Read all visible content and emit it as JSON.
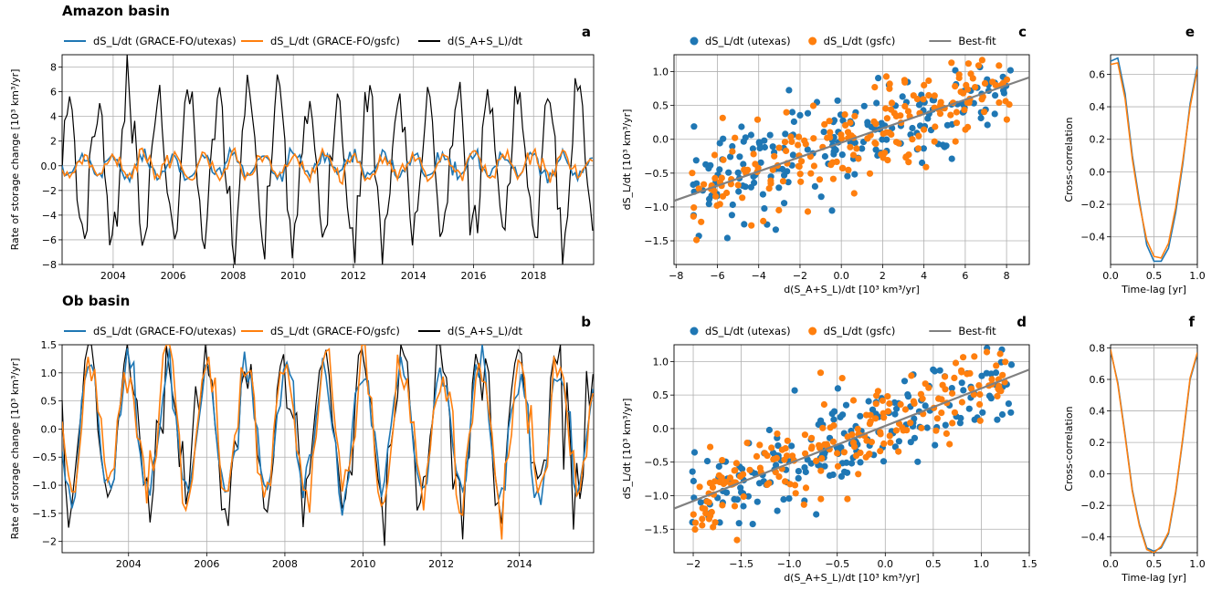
{
  "titles": {
    "top": "Amazon basin",
    "bottom": "Ob basin"
  },
  "legend_ts": [
    "dS_L/dt (GRACE-FO/utexas)",
    "dS_L/dt (GRACE-FO/gsfc)",
    "d(S_A+S_L)/dt"
  ],
  "legend_sc": [
    "dS_L/dt (utexas)",
    "dS_L/dt (gsfc)",
    "Best-fit"
  ],
  "colors": {
    "utexas": "#1f77b4",
    "gsfc": "#ff7f0e",
    "total": "#000000",
    "fit": "#808080"
  },
  "chart_data": [
    {
      "type": "line",
      "panel": "a",
      "basin": "Amazon basin",
      "ylabel": "Rate of storage change [10³ km³/yr]",
      "xlim": [
        2002.3,
        2020.0
      ],
      "ylim": [
        -8,
        9
      ],
      "xticks": [
        2004,
        2006,
        2008,
        2010,
        2012,
        2014,
        2016,
        2018
      ],
      "yticks": [
        -8,
        -6,
        -4,
        -2,
        0,
        2,
        4,
        6,
        8
      ],
      "series": [
        {
          "name": "dS_L/dt (GRACE-FO/utexas)",
          "amp": 0.8,
          "phase": 0.0,
          "noise": 0.3
        },
        {
          "name": "dS_L/dt (GRACE-FO/gsfc)",
          "amp": 0.85,
          "phase": 0.02,
          "noise": 0.35
        },
        {
          "name": "d(S_A+S_L)/dt",
          "amp": 5.8,
          "phase": 0.5,
          "noise": 1.2
        }
      ]
    },
    {
      "type": "line",
      "panel": "b",
      "basin": "Ob basin",
      "ylabel": "Rate of storage change [10³ km³/yr]",
      "xlim": [
        2002.3,
        2015.9
      ],
      "ylim": [
        -2.2,
        1.5
      ],
      "xticks": [
        2004,
        2006,
        2008,
        2010,
        2012,
        2014
      ],
      "yticks": [
        -2.0,
        -1.5,
        -1.0,
        -0.5,
        0.0,
        0.5,
        1.0,
        1.5
      ],
      "series": [
        {
          "name": "dS_L/dt (GRACE-FO/utexas)",
          "amp": 1.1,
          "phase": 0.0,
          "noise": 0.25
        },
        {
          "name": "dS_L/dt (GRACE-FO/gsfc)",
          "amp": 1.1,
          "phase": 0.01,
          "noise": 0.28
        },
        {
          "name": "d(S_A+S_L)/dt",
          "amp": 1.3,
          "phase": 0.0,
          "noise": 0.35
        }
      ]
    },
    {
      "type": "scatter",
      "panel": "c",
      "xlabel": "d(S_A+S_L)/dt [10³ km³/yr]",
      "ylabel": "dS_L/dt [10³ km³/yr]",
      "xlim": [
        -8.1,
        9.1
      ],
      "ylim": [
        -1.85,
        1.25
      ],
      "xticks": [
        -8,
        -6,
        -4,
        -2,
        0,
        2,
        4,
        6,
        8
      ],
      "yticks": [
        -1.5,
        -1.0,
        -0.5,
        0.0,
        0.5,
        1.0
      ],
      "fit": {
        "slope": 0.106,
        "intercept": -0.05
      }
    },
    {
      "type": "scatter",
      "panel": "d",
      "xlabel": "d(S_A+S_L)/dt [10³ km³/yr]",
      "ylabel": "dS_L/dt [10³ km³/yr]",
      "xlim": [
        -2.2,
        1.5
      ],
      "ylim": [
        -1.85,
        1.25
      ],
      "xticks": [
        -2.0,
        -1.5,
        -1.0,
        -0.5,
        0.0,
        0.5,
        1.0,
        1.5
      ],
      "yticks": [
        -1.5,
        -1.0,
        -0.5,
        0.0,
        0.5,
        1.0
      ],
      "fit": {
        "slope": 0.56,
        "intercept": 0.04
      }
    },
    {
      "type": "line",
      "panel": "e",
      "xlabel": "Time-lag [yr]",
      "ylabel": "Cross-correlation",
      "xlim": [
        0,
        1
      ],
      "ylim": [
        -0.57,
        0.72
      ],
      "xticks": [
        0.0,
        0.5,
        1.0
      ],
      "yticks": [
        -0.4,
        -0.2,
        0.0,
        0.2,
        0.4,
        0.6
      ],
      "x": [
        0.0,
        0.083,
        0.167,
        0.25,
        0.333,
        0.417,
        0.5,
        0.583,
        0.667,
        0.75,
        0.833,
        0.917,
        1.0
      ],
      "series": [
        {
          "name": "utexas",
          "values": [
            0.68,
            0.7,
            0.48,
            0.1,
            -0.18,
            -0.45,
            -0.55,
            -0.55,
            -0.47,
            -0.25,
            0.05,
            0.42,
            0.65
          ]
        },
        {
          "name": "gsfc",
          "values": [
            0.66,
            0.67,
            0.45,
            0.08,
            -0.2,
            -0.42,
            -0.52,
            -0.53,
            -0.44,
            -0.22,
            0.07,
            0.4,
            0.63
          ]
        }
      ]
    },
    {
      "type": "line",
      "panel": "f",
      "xlabel": "Time-lag [yr]",
      "ylabel": "Cross-correlation",
      "xlim": [
        0,
        1
      ],
      "ylim": [
        -0.5,
        0.82
      ],
      "xticks": [
        0.0,
        0.5,
        1.0
      ],
      "yticks": [
        -0.4,
        -0.2,
        0.0,
        0.2,
        0.4,
        0.6,
        0.8
      ],
      "x": [
        0.0,
        0.083,
        0.167,
        0.25,
        0.333,
        0.417,
        0.5,
        0.583,
        0.667,
        0.75,
        0.833,
        0.917,
        1.0
      ],
      "series": [
        {
          "name": "utexas",
          "values": [
            0.78,
            0.58,
            0.25,
            -0.1,
            -0.32,
            -0.47,
            -0.49,
            -0.47,
            -0.38,
            -0.12,
            0.22,
            0.6,
            0.76
          ]
        },
        {
          "name": "gsfc",
          "values": [
            0.79,
            0.57,
            0.24,
            -0.11,
            -0.33,
            -0.48,
            -0.5,
            -0.46,
            -0.37,
            -0.11,
            0.23,
            0.61,
            0.77
          ]
        }
      ]
    }
  ]
}
